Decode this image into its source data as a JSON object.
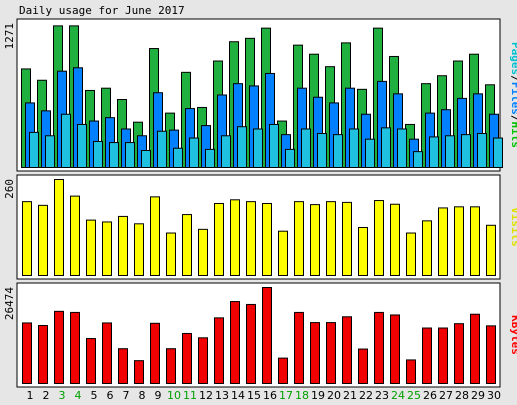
{
  "chart_data": {
    "type": "bar",
    "title": "Daily usage for June 2017",
    "categories": [
      "1",
      "2",
      "3",
      "4",
      "5",
      "6",
      "7",
      "8",
      "9",
      "10",
      "11",
      "12",
      "13",
      "14",
      "15",
      "16",
      "17",
      "18",
      "19",
      "20",
      "21",
      "22",
      "23",
      "24",
      "25",
      "26",
      "27",
      "28",
      "29",
      "30"
    ],
    "weekend_days": [
      "3",
      "4",
      "10",
      "11",
      "17",
      "18",
      "24",
      "25"
    ],
    "panels": [
      {
        "name": "top",
        "max_label": "1271",
        "ymax": 1271,
        "legend": [
          {
            "text": "Pages",
            "color": "#00c0d0"
          },
          {
            "text": "/",
            "color": "#000000"
          },
          {
            "text": "Files",
            "color": "#0080ff"
          },
          {
            "text": "/",
            "color": "#000000"
          },
          {
            "text": "Hits",
            "color": "#00c000"
          }
        ],
        "series": [
          {
            "name": "Hits",
            "color": "#20b040",
            "values": [
              870,
              770,
              1250,
              1250,
              680,
              700,
              600,
              400,
              1050,
              480,
              840,
              530,
              940,
              1110,
              1140,
              1230,
              410,
              1080,
              1000,
              890,
              1100,
              690,
              1230,
              980,
              380,
              740,
              810,
              940,
              1000,
              730
            ]
          },
          {
            "name": "Files",
            "color": "#0080ff",
            "values": [
              570,
              500,
              850,
              880,
              410,
              440,
              340,
              280,
              660,
              330,
              520,
              370,
              640,
              740,
              720,
              830,
              290,
              700,
              620,
              570,
              700,
              470,
              760,
              650,
              250,
              480,
              510,
              610,
              650,
              470
            ]
          },
          {
            "name": "Pages",
            "color": "#20c0e0",
            "values": [
              310,
              280,
              470,
              380,
              230,
              220,
              220,
              150,
              320,
              170,
              260,
              160,
              280,
              360,
              340,
              380,
              160,
              340,
              300,
              290,
              340,
              250,
              350,
              340,
              140,
              270,
              280,
              290,
              300,
              260
            ]
          }
        ]
      },
      {
        "name": "middle",
        "max_label": "260",
        "ymax": 260,
        "legend": [
          {
            "text": "Visits",
            "color": "#e0e000"
          }
        ],
        "series": [
          {
            "name": "Visits",
            "color": "#ffff00",
            "values": [
              200,
              190,
              260,
              215,
              150,
              145,
              160,
              140,
              213,
              115,
              165,
              125,
              195,
              205,
              200,
              195,
              120,
              200,
              192,
              200,
              198,
              130,
              203,
              193,
              115,
              148,
              183,
              186,
              186,
              136
            ]
          }
        ]
      },
      {
        "name": "bottom",
        "max_label": "26474",
        "ymax": 26474,
        "legend": [
          {
            "text": "KBytes",
            "color": "#ff0000"
          }
        ],
        "series": [
          {
            "name": "KBytes",
            "color": "#f00000",
            "values": [
              16700,
              16000,
              19900,
              19600,
              12400,
              16700,
              9600,
              6300,
              16600,
              9600,
              13800,
              12600,
              18100,
              22600,
              21800,
              26474,
              7000,
              19600,
              16800,
              16800,
              18400,
              9500,
              19600,
              18900,
              6500,
              15300,
              15300,
              16500,
              19100,
              15900
            ]
          }
        ]
      }
    ]
  }
}
